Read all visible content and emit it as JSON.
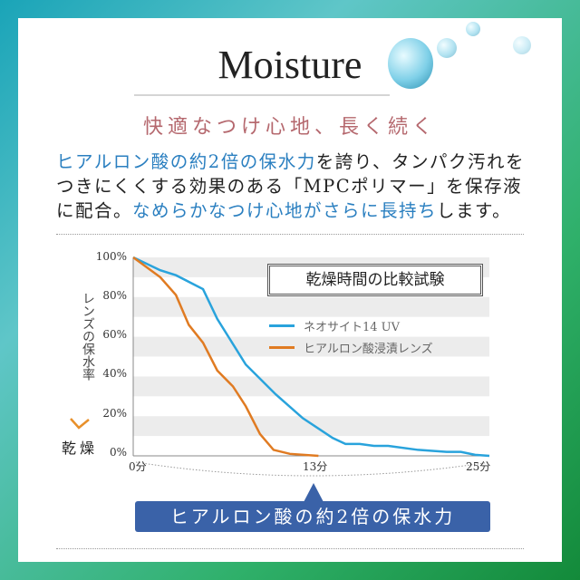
{
  "header": {
    "title": "Moisture",
    "subtitle": "快適なつけ心地、長く続く"
  },
  "body": {
    "line1_hl": "ヒアルロン酸の約2倍の保水力",
    "line1_rest": "を誇り、タンパク汚れを",
    "line2": "つきにくくする効果のある「MPCポリマー」を保存液",
    "line3_a": "に配合。",
    "line3_hl": "なめらかなつけ心地がさらに長持ち",
    "line3_b": "します。"
  },
  "colors": {
    "highlight": "#2a7fc0",
    "subtitle": "#b5686e",
    "banner": "#3a62a8",
    "series_blue": "#29a3dc",
    "series_orange": "#e07b22"
  },
  "banner": {
    "text": "ヒアルロン酸の約2倍の保水力"
  },
  "chart_data": {
    "type": "line",
    "title": "乾燥時間の比較試験",
    "ylabel": "レンズの保水率",
    "y_arrow_label": "乾燥",
    "xlim": [
      0,
      25
    ],
    "ylim": [
      0,
      100
    ],
    "x_ticks": [
      "0分",
      "13分",
      "25分"
    ],
    "y_ticks": [
      "100%",
      "80%",
      "60%",
      "40%",
      "20%",
      "0%"
    ],
    "grid": "alternating horizontal bands",
    "legend": "top-right",
    "series": [
      {
        "name": "ネオサイト14 UV",
        "color": "#29a3dc",
        "points": [
          [
            0,
            100
          ],
          [
            1.9,
            93.5
          ],
          [
            3,
            91
          ],
          [
            4.9,
            84
          ],
          [
            5.9,
            69
          ],
          [
            7.9,
            46
          ],
          [
            10,
            31
          ],
          [
            11.9,
            19
          ],
          [
            14,
            9
          ],
          [
            14.9,
            6
          ],
          [
            15.9,
            6
          ],
          [
            16.9,
            5
          ],
          [
            17.9,
            5
          ],
          [
            20,
            3
          ],
          [
            22,
            2
          ],
          [
            23,
            2
          ],
          [
            24,
            0.5
          ],
          [
            25,
            0
          ]
        ]
      },
      {
        "name": "ヒアルロン酸浸漬レンズ",
        "color": "#e07b22",
        "points": [
          [
            0,
            100
          ],
          [
            1.9,
            90
          ],
          [
            3,
            81
          ],
          [
            3.9,
            66
          ],
          [
            4.9,
            57
          ],
          [
            5.9,
            43
          ],
          [
            7,
            35
          ],
          [
            7.9,
            25
          ],
          [
            8.9,
            11
          ],
          [
            9.85,
            3
          ],
          [
            11,
            1
          ],
          [
            13,
            0
          ]
        ]
      }
    ]
  }
}
